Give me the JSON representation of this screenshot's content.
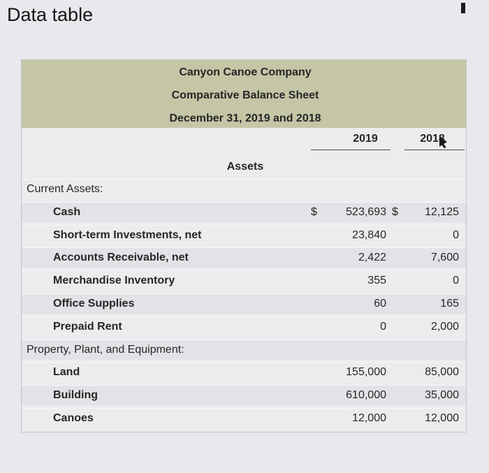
{
  "page": {
    "title": "Data table"
  },
  "statement": {
    "company": "Canyon Canoe Company",
    "title": "Comparative Balance Sheet",
    "date": "December 31, 2019 and 2018",
    "col_2019": "2019",
    "col_2018": "2018",
    "section": "Assets",
    "currency_symbol": "$"
  },
  "rows": [
    {
      "label": "Current Assets:",
      "kind": "group",
      "v2019": "",
      "v2018": ""
    },
    {
      "label": "Cash",
      "kind": "item",
      "v2019": "523,693",
      "v2018": "12,125",
      "dollar": true
    },
    {
      "label": "Short-term Investments, net",
      "kind": "item",
      "v2019": "23,840",
      "v2018": "0"
    },
    {
      "label": "Accounts Receivable, net",
      "kind": "item",
      "v2019": "2,422",
      "v2018": "7,600"
    },
    {
      "label": "Merchandise Inventory",
      "kind": "item",
      "v2019": "355",
      "v2018": "0"
    },
    {
      "label": "Office Supplies",
      "kind": "item",
      "v2019": "60",
      "v2018": "165"
    },
    {
      "label": "Prepaid Rent",
      "kind": "item",
      "v2019": "0",
      "v2018": "2,000"
    },
    {
      "label": "Property, Plant, and Equipment:",
      "kind": "group",
      "v2019": "",
      "v2018": ""
    },
    {
      "label": "Land",
      "kind": "item",
      "v2019": "155,000",
      "v2018": "85,000"
    },
    {
      "label": "Building",
      "kind": "item",
      "v2019": "610,000",
      "v2018": "35,000"
    },
    {
      "label": "Canoes",
      "kind": "item",
      "v2019": "12,000",
      "v2018": "12,000"
    }
  ]
}
